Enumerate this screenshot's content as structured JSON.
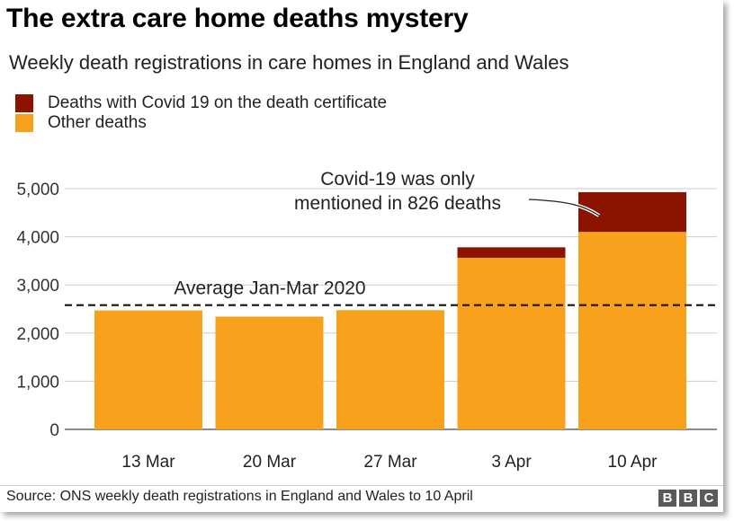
{
  "title": "The extra care home deaths mystery",
  "subtitle": "Weekly death registrations in care homes in England and Wales",
  "legend": [
    {
      "label": "Deaths with Covid 19 on the death certificate",
      "color": "#8b1300"
    },
    {
      "label": "Other deaths",
      "color": "#f8a11c"
    }
  ],
  "source": "Source: ONS weekly death registrations in England and Wales to 10 April",
  "branding": [
    "B",
    "B",
    "C"
  ],
  "chart_data": {
    "type": "bar",
    "stacked": true,
    "categories": [
      "13 Mar",
      "20 Mar",
      "27 Mar",
      "3 Apr",
      "10 Apr"
    ],
    "series": [
      {
        "name": "Other deaths",
        "color": "#f8a11c",
        "values": [
          2471,
          2341,
          2476,
          3564,
          4101
        ]
      },
      {
        "name": "Deaths with Covid 19 on the death certificate",
        "color": "#8b1300",
        "values": [
          0,
          0,
          0,
          217,
          826
        ]
      }
    ],
    "ylim": [
      0,
      5000
    ],
    "yticks": [
      0,
      1000,
      2000,
      3000,
      4000,
      5000
    ],
    "ytick_labels": [
      "0",
      "1,000",
      "2,000",
      "3,000",
      "4,000",
      "5,000"
    ],
    "grid": true,
    "reference_line": {
      "value": 2580,
      "label": "Average Jan-Mar 2020"
    },
    "annotation": {
      "lines": [
        "Covid-19 was only",
        "mentioned in 826 deaths"
      ],
      "category": "10 Apr"
    }
  }
}
